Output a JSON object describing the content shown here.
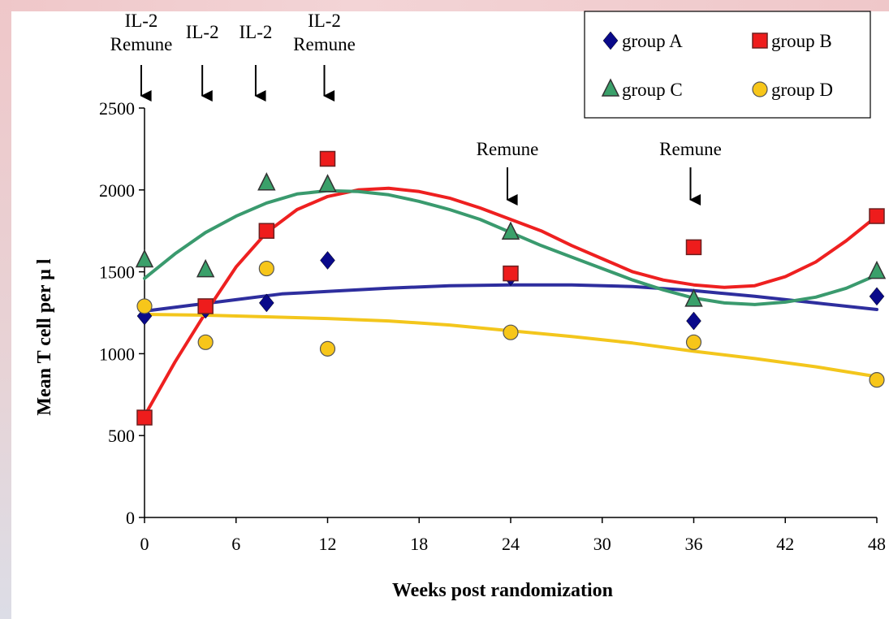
{
  "chart_data": {
    "type": "scatter",
    "xlabel": "Weeks post randomization",
    "ylabel": "Mean T cell per   µ l",
    "xlim": [
      0,
      48
    ],
    "ylim": [
      0,
      2500
    ],
    "x_ticks": [
      "0",
      "6",
      "12",
      "18",
      "24",
      "30",
      "36",
      "42",
      "48"
    ],
    "y_ticks": [
      "0",
      "500",
      "1000",
      "1500",
      "2000",
      "2500"
    ],
    "legend_position": "top-right",
    "series": [
      {
        "name": "group A",
        "marker": "diamond",
        "color": "#0a0a8a",
        "line_color": "#2e2e9e",
        "points": [
          [
            0,
            1230
          ],
          [
            4,
            1270
          ],
          [
            8,
            1310
          ],
          [
            12,
            1570
          ],
          [
            24,
            1470
          ],
          [
            36,
            1200
          ],
          [
            48,
            1350
          ]
        ],
        "trend": [
          [
            0,
            1260
          ],
          [
            3,
            1295
          ],
          [
            6,
            1330
          ],
          [
            9,
            1365
          ],
          [
            12,
            1380
          ],
          [
            16,
            1400
          ],
          [
            20,
            1415
          ],
          [
            24,
            1420
          ],
          [
            28,
            1420
          ],
          [
            32,
            1410
          ],
          [
            36,
            1385
          ],
          [
            40,
            1350
          ],
          [
            44,
            1310
          ],
          [
            48,
            1270
          ]
        ]
      },
      {
        "name": "group B",
        "marker": "square",
        "color": "#ee1c1c",
        "line_color": "#ee2020",
        "points": [
          [
            0,
            610
          ],
          [
            4,
            1290
          ],
          [
            8,
            1750
          ],
          [
            12,
            2190
          ],
          [
            24,
            1490
          ],
          [
            36,
            1650
          ],
          [
            48,
            1840
          ]
        ],
        "trend": [
          [
            0,
            620
          ],
          [
            2,
            950
          ],
          [
            4,
            1250
          ],
          [
            6,
            1530
          ],
          [
            8,
            1740
          ],
          [
            10,
            1880
          ],
          [
            12,
            1960
          ],
          [
            14,
            2000
          ],
          [
            16,
            2010
          ],
          [
            18,
            1990
          ],
          [
            20,
            1950
          ],
          [
            22,
            1890
          ],
          [
            24,
            1820
          ],
          [
            26,
            1750
          ],
          [
            28,
            1660
          ],
          [
            30,
            1580
          ],
          [
            32,
            1500
          ],
          [
            34,
            1450
          ],
          [
            36,
            1420
          ],
          [
            38,
            1405
          ],
          [
            40,
            1415
          ],
          [
            42,
            1470
          ],
          [
            44,
            1560
          ],
          [
            46,
            1690
          ],
          [
            48,
            1840
          ]
        ]
      },
      {
        "name": "group C",
        "marker": "triangle",
        "color": "#3aa06a",
        "line_color": "#3a9a6e",
        "points": [
          [
            0,
            1570
          ],
          [
            4,
            1510
          ],
          [
            8,
            2040
          ],
          [
            12,
            2030
          ],
          [
            24,
            1740
          ],
          [
            36,
            1330
          ],
          [
            48,
            1500
          ]
        ],
        "trend": [
          [
            0,
            1460
          ],
          [
            2,
            1610
          ],
          [
            4,
            1740
          ],
          [
            6,
            1840
          ],
          [
            8,
            1920
          ],
          [
            10,
            1975
          ],
          [
            12,
            1995
          ],
          [
            14,
            1990
          ],
          [
            16,
            1970
          ],
          [
            18,
            1930
          ],
          [
            20,
            1880
          ],
          [
            22,
            1820
          ],
          [
            24,
            1740
          ],
          [
            26,
            1660
          ],
          [
            28,
            1590
          ],
          [
            30,
            1520
          ],
          [
            32,
            1450
          ],
          [
            34,
            1390
          ],
          [
            36,
            1340
          ],
          [
            38,
            1310
          ],
          [
            40,
            1300
          ],
          [
            42,
            1315
          ],
          [
            44,
            1345
          ],
          [
            46,
            1400
          ],
          [
            48,
            1480
          ]
        ]
      },
      {
        "name": "group D",
        "marker": "circle",
        "color": "#f7c61a",
        "line_color": "#f3c61c",
        "points": [
          [
            0,
            1290
          ],
          [
            4,
            1070
          ],
          [
            8,
            1520
          ],
          [
            12,
            1030
          ],
          [
            24,
            1130
          ],
          [
            36,
            1070
          ],
          [
            48,
            840
          ]
        ],
        "trend": [
          [
            0,
            1240
          ],
          [
            4,
            1235
          ],
          [
            8,
            1225
          ],
          [
            12,
            1215
          ],
          [
            16,
            1200
          ],
          [
            20,
            1175
          ],
          [
            24,
            1140
          ],
          [
            28,
            1105
          ],
          [
            32,
            1065
          ],
          [
            36,
            1015
          ],
          [
            40,
            970
          ],
          [
            44,
            920
          ],
          [
            48,
            860
          ]
        ]
      }
    ],
    "annotations": [
      {
        "lines": [
          "IL-2",
          "Remune"
        ],
        "x": 0
      },
      {
        "lines": [
          "IL-2"
        ],
        "x": 4
      },
      {
        "lines": [
          "IL-2"
        ],
        "x": 7.5
      },
      {
        "lines": [
          "IL-2",
          "Remune"
        ],
        "x": 12
      },
      {
        "lines": [
          "Remune"
        ],
        "x": 24
      },
      {
        "lines": [
          "Remune"
        ],
        "x": 36
      }
    ]
  }
}
